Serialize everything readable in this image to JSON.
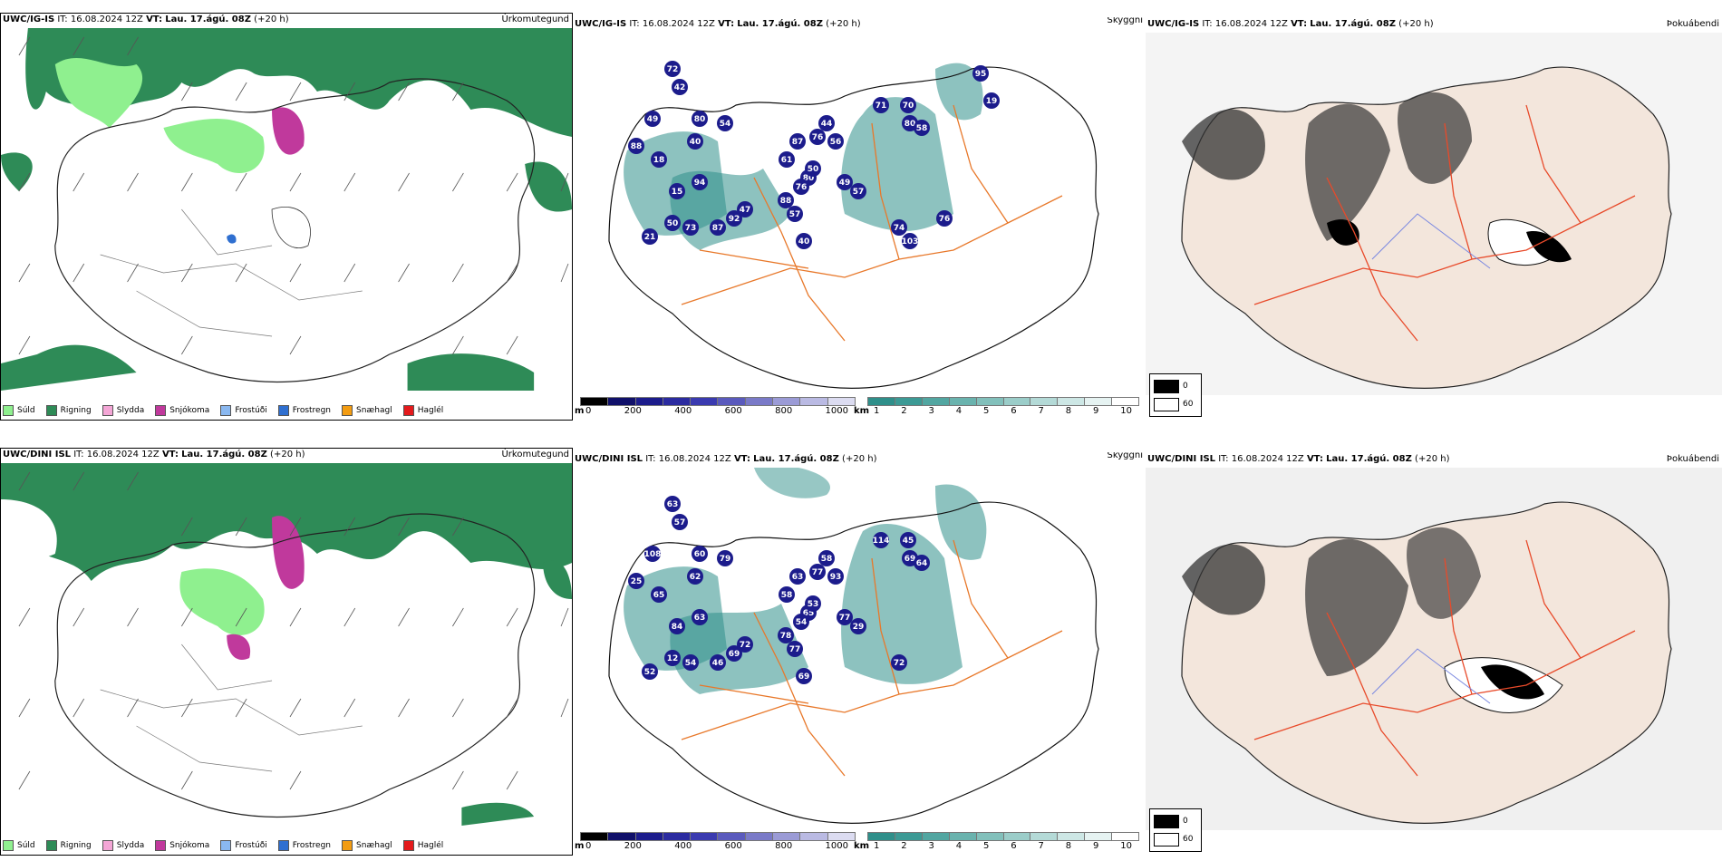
{
  "colors": {
    "rain": "#2e8b57",
    "drizzle": "#8ff08f",
    "sleet": "#f4a6d6",
    "snow": "#c0399c",
    "freezing_drizzle": "#8ab8f0",
    "freezing_rain": "#2f6fd0",
    "snow_pellets": "#f39c12",
    "hail": "#e41a1c",
    "cloud_low": "#1c1c8c",
    "vis_teal": "#2f8f8a",
    "land_beige": "#f3e6dc",
    "road": "#e8782a"
  },
  "precip_legend": [
    {
      "label": "Súld",
      "color": "#8ff08f"
    },
    {
      "label": "Rigning",
      "color": "#2e8b57"
    },
    {
      "label": "Slydda",
      "color": "#f4a6d6"
    },
    {
      "label": "Snjókoma",
      "color": "#c0399c"
    },
    {
      "label": "Frostúði",
      "color": "#8ab8f0"
    },
    {
      "label": "Frostregn",
      "color": "#2f6fd0"
    },
    {
      "label": "Snæhagl",
      "color": "#f39c12"
    },
    {
      "label": "Haglél",
      "color": "#e41a1c"
    }
  ],
  "rows": [
    {
      "model": "UWC/IG-IS",
      "it": "IT: 16.08.2024 12Z",
      "vt_label": "VT:",
      "vt": "Lau. 17.ágú. 08Z",
      "lead": "(+20 h)",
      "precip_title": "Úrkomutegund",
      "vis_title": "Skyggni",
      "fog_title": "Þokuábendi",
      "ceiling_numbers": [
        "72",
        "42",
        "49",
        "80",
        "40",
        "54",
        "88",
        "18",
        "15",
        "94",
        "50",
        "73",
        "87",
        "92",
        "47",
        "88",
        "57",
        "80",
        "76",
        "87",
        "61",
        "50",
        "76",
        "40",
        "21",
        "44",
        "56",
        "49",
        "57",
        "71",
        "70",
        "80",
        "58",
        "74",
        "103",
        "76",
        "95",
        "19"
      ],
      "visibility_numbers": []
    },
    {
      "model": "UWC/DINI ISL",
      "it": "IT: 16.08.2024 12Z",
      "vt_label": "VT:",
      "vt": "Lau. 17.ágú. 08Z",
      "lead": "(+20 h)",
      "precip_title": "Úrkomutegund",
      "vis_title": "Skyggni",
      "fog_title": "Þokuábendi",
      "ceiling_numbers": [
        "63",
        "57",
        "108",
        "60",
        "62",
        "79",
        "25",
        "65",
        "84",
        "63",
        "12",
        "54",
        "46",
        "69",
        "72",
        "78",
        "77",
        "65",
        "54",
        "63",
        "58",
        "53",
        "77",
        "69",
        "52",
        "58",
        "93",
        "77",
        "29",
        "114",
        "45",
        "69",
        "64",
        "72"
      ],
      "visibility_numbers": []
    }
  ],
  "ceiling_scale": {
    "unit": "m",
    "ticks": [
      "0",
      "200",
      "400",
      "600",
      "800",
      "1000"
    ]
  },
  "visibility_scale": {
    "unit": "km",
    "ticks": [
      "1",
      "2",
      "3",
      "4",
      "5",
      "6",
      "7",
      "8",
      "9",
      "10"
    ]
  },
  "fog_scale": {
    "ticks": [
      "0",
      "60"
    ]
  }
}
